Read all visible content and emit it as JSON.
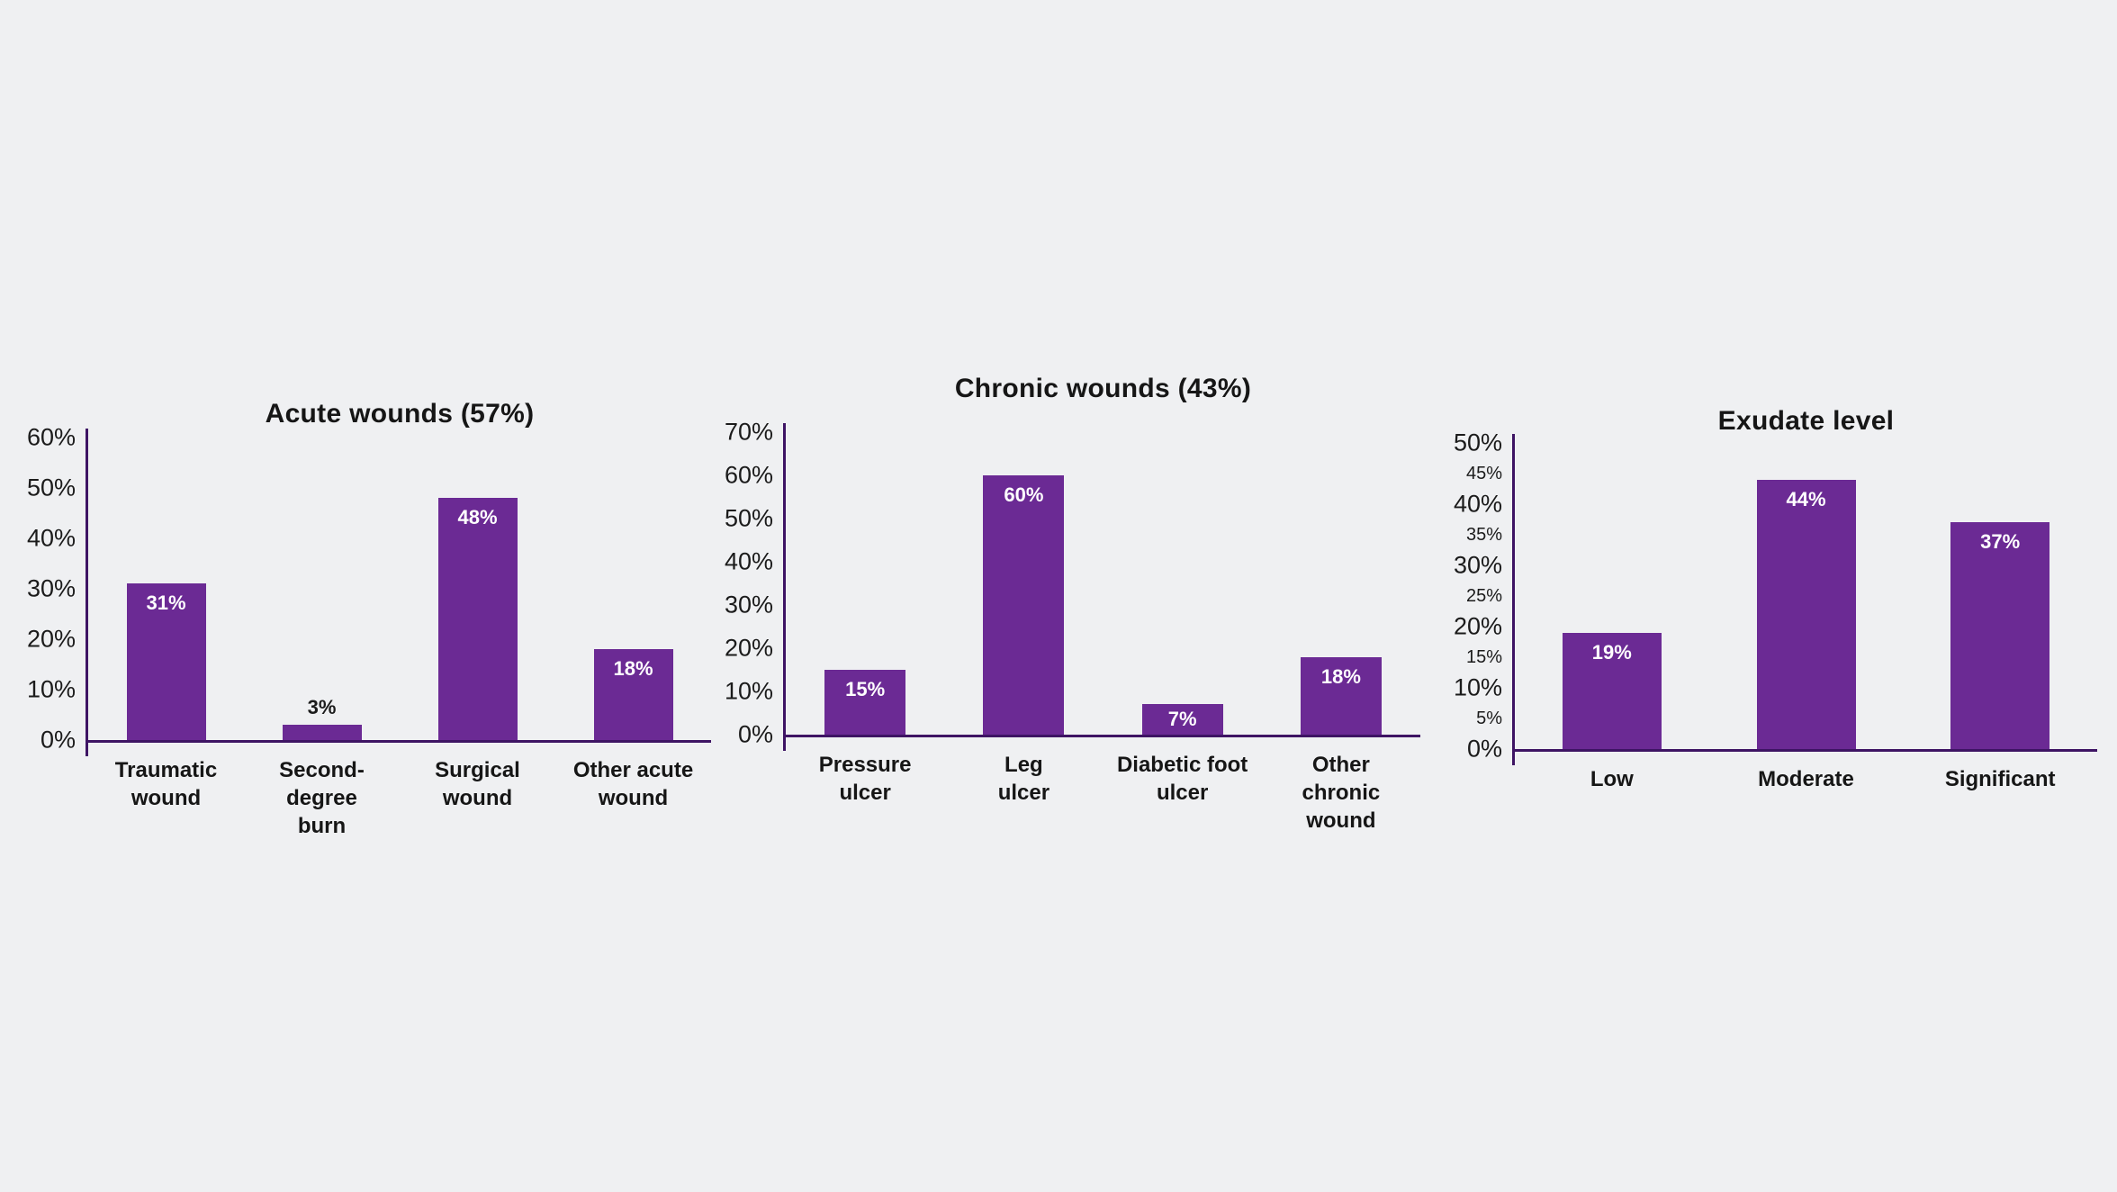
{
  "page": {
    "background": "#eff0f2"
  },
  "colors": {
    "bar_fill": "#6b2a94",
    "axis_line": "#3e1464",
    "text": "#1b1b1b",
    "value_label_inside": "#ffffff",
    "value_label_above": "#1b1b1b"
  },
  "chart_data": [
    {
      "type": "bar",
      "title": "Acute wounds (57%)",
      "xlabel": "",
      "ylabel": "",
      "ylim": [
        0,
        60
      ],
      "grid": false,
      "legend": false,
      "yticks": [
        {
          "value": 0,
          "label": "0%",
          "size": "big"
        },
        {
          "value": 10,
          "label": "10%",
          "size": "big"
        },
        {
          "value": 20,
          "label": "20%",
          "size": "big"
        },
        {
          "value": 30,
          "label": "30%",
          "size": "big"
        },
        {
          "value": 40,
          "label": "40%",
          "size": "big"
        },
        {
          "value": 50,
          "label": "50%",
          "size": "big"
        },
        {
          "value": 60,
          "label": "60%",
          "size": "big"
        }
      ],
      "categories": [
        "Traumatic\nwound",
        "Second-degree\nburn",
        "Surgical\nwound",
        "Other acute\nwound"
      ],
      "values": [
        31,
        3,
        48,
        18
      ],
      "bar_labels": [
        "31%",
        "3%",
        "48%",
        "18%"
      ],
      "label_placement": [
        "inside",
        "above",
        "inside",
        "inside"
      ]
    },
    {
      "type": "bar",
      "title": "Chronic wounds (43%)",
      "xlabel": "",
      "ylabel": "",
      "ylim": [
        0,
        70
      ],
      "grid": false,
      "legend": false,
      "yticks": [
        {
          "value": 0,
          "label": "0%",
          "size": "big"
        },
        {
          "value": 10,
          "label": "10%",
          "size": "big"
        },
        {
          "value": 20,
          "label": "20%",
          "size": "big"
        },
        {
          "value": 30,
          "label": "30%",
          "size": "big"
        },
        {
          "value": 40,
          "label": "40%",
          "size": "big"
        },
        {
          "value": 50,
          "label": "50%",
          "size": "big"
        },
        {
          "value": 60,
          "label": "60%",
          "size": "big"
        },
        {
          "value": 70,
          "label": "70%",
          "size": "big"
        }
      ],
      "categories": [
        "Pressure\nulcer",
        "Leg\nulcer",
        "Diabetic foot\nulcer",
        "Other\nchronic\nwound"
      ],
      "values": [
        15,
        60,
        7,
        18
      ],
      "bar_labels": [
        "15%",
        "60%",
        "7%",
        "18%"
      ],
      "label_placement": [
        "inside",
        "inside",
        "inside",
        "inside"
      ]
    },
    {
      "type": "bar",
      "title": "Exudate level",
      "xlabel": "",
      "ylabel": "",
      "ylim": [
        0,
        50
      ],
      "grid": false,
      "legend": false,
      "yticks": [
        {
          "value": 0,
          "label": "0%",
          "size": "big"
        },
        {
          "value": 5,
          "label": "5%",
          "size": "small"
        },
        {
          "value": 10,
          "label": "10%",
          "size": "big"
        },
        {
          "value": 15,
          "label": "15%",
          "size": "small"
        },
        {
          "value": 20,
          "label": "20%",
          "size": "big"
        },
        {
          "value": 25,
          "label": "25%",
          "size": "small"
        },
        {
          "value": 30,
          "label": "30%",
          "size": "big"
        },
        {
          "value": 35,
          "label": "35%",
          "size": "small"
        },
        {
          "value": 40,
          "label": "40%",
          "size": "big"
        },
        {
          "value": 45,
          "label": "45%",
          "size": "small"
        },
        {
          "value": 50,
          "label": "50%",
          "size": "big"
        }
      ],
      "categories": [
        "Low",
        "Moderate",
        "Significant"
      ],
      "values": [
        19,
        44,
        37
      ],
      "bar_labels": [
        "19%",
        "44%",
        "37%"
      ],
      "label_placement": [
        "inside",
        "inside",
        "inside"
      ]
    }
  ]
}
